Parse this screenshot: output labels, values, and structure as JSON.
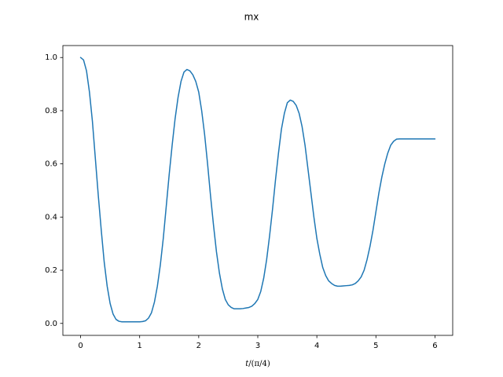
{
  "chart_data": {
    "type": "line",
    "title": "mx",
    "xlabel_prefix": "t",
    "xlabel_suffix": "/(π/4)",
    "ylabel": "",
    "xlim": [
      -0.3,
      6.3
    ],
    "ylim": [
      -0.045,
      1.045
    ],
    "x_ticks": [
      0,
      1,
      2,
      3,
      4,
      5,
      6
    ],
    "y_ticks": [
      0.0,
      0.2,
      0.4,
      0.6,
      0.8,
      1.0
    ],
    "x_tick_labels": [
      "0",
      "1",
      "2",
      "3",
      "4",
      "5",
      "6"
    ],
    "y_tick_labels": [
      "0.0",
      "0.2",
      "0.4",
      "0.6",
      "0.8",
      "1.0"
    ],
    "grid": false,
    "series": [
      {
        "color": "#1f77b4",
        "x": [
          0.0,
          0.05,
          0.1,
          0.15,
          0.2,
          0.25,
          0.3,
          0.35,
          0.4,
          0.45,
          0.5,
          0.55,
          0.6,
          0.65,
          0.7,
          0.75,
          0.8,
          0.85,
          0.9,
          0.95,
          1.0,
          1.05,
          1.1,
          1.15,
          1.2,
          1.25,
          1.3,
          1.35,
          1.4,
          1.45,
          1.5,
          1.55,
          1.6,
          1.65,
          1.7,
          1.75,
          1.8,
          1.85,
          1.9,
          1.95,
          2.0,
          2.05,
          2.1,
          2.15,
          2.2,
          2.25,
          2.3,
          2.35,
          2.4,
          2.45,
          2.5,
          2.55,
          2.6,
          2.65,
          2.7,
          2.75,
          2.8,
          2.85,
          2.9,
          2.95,
          3.0,
          3.05,
          3.1,
          3.15,
          3.2,
          3.25,
          3.3,
          3.35,
          3.4,
          3.45,
          3.5,
          3.55,
          3.6,
          3.65,
          3.7,
          3.75,
          3.8,
          3.85,
          3.9,
          3.95,
          4.0,
          4.05,
          4.1,
          4.15,
          4.2,
          4.25,
          4.3,
          4.35,
          4.4,
          4.45,
          4.5,
          4.55,
          4.6,
          4.65,
          4.7,
          4.75,
          4.8,
          4.85,
          4.9,
          4.95,
          5.0,
          5.05,
          5.1,
          5.15,
          5.2,
          5.25,
          5.3,
          5.35,
          5.4,
          5.45,
          5.5,
          5.55,
          5.6,
          5.65,
          5.7,
          5.75,
          5.8,
          5.85,
          5.9,
          5.95,
          6.0
        ],
        "y": [
          1.0,
          0.991,
          0.95,
          0.87,
          0.76,
          0.62,
          0.48,
          0.35,
          0.23,
          0.14,
          0.075,
          0.035,
          0.015,
          0.008,
          0.006,
          0.006,
          0.006,
          0.006,
          0.006,
          0.006,
          0.006,
          0.007,
          0.01,
          0.02,
          0.04,
          0.08,
          0.14,
          0.22,
          0.32,
          0.44,
          0.56,
          0.67,
          0.77,
          0.85,
          0.91,
          0.945,
          0.955,
          0.95,
          0.935,
          0.91,
          0.87,
          0.8,
          0.71,
          0.6,
          0.48,
          0.37,
          0.27,
          0.19,
          0.13,
          0.09,
          0.07,
          0.06,
          0.055,
          0.055,
          0.055,
          0.056,
          0.058,
          0.06,
          0.065,
          0.075,
          0.09,
          0.12,
          0.17,
          0.24,
          0.33,
          0.43,
          0.54,
          0.64,
          0.73,
          0.79,
          0.83,
          0.84,
          0.835,
          0.82,
          0.79,
          0.74,
          0.67,
          0.58,
          0.49,
          0.4,
          0.32,
          0.26,
          0.21,
          0.18,
          0.16,
          0.15,
          0.143,
          0.14,
          0.14,
          0.141,
          0.142,
          0.143,
          0.145,
          0.15,
          0.16,
          0.175,
          0.2,
          0.24,
          0.29,
          0.35,
          0.42,
          0.49,
          0.55,
          0.6,
          0.64,
          0.67,
          0.685,
          0.693,
          0.694,
          0.694,
          0.694,
          0.694,
          0.694,
          0.694,
          0.694,
          0.694,
          0.694,
          0.694,
          0.694,
          0.694,
          0.694
        ]
      }
    ]
  }
}
